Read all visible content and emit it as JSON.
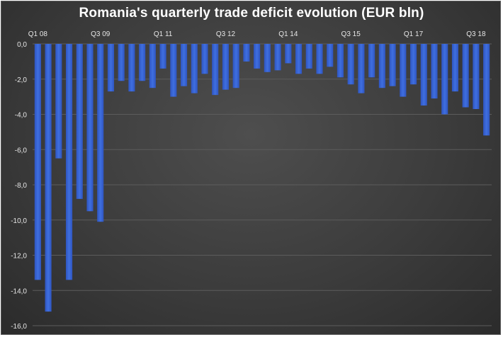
{
  "chart_data": {
    "type": "bar",
    "title": "Romania's quarterly trade deficit evolution (EUR bln)",
    "xlabel": "",
    "ylabel": "",
    "ylim": [
      -16,
      0
    ],
    "y_ticks": [
      "0,0",
      "-2,0",
      "-4,0",
      "-6,0",
      "-8,0",
      "-10,0",
      "-12,0",
      "-14,0",
      "-16,0"
    ],
    "y_tick_values": [
      0,
      -2,
      -4,
      -6,
      -8,
      -10,
      -12,
      -14,
      -16
    ],
    "categories": [
      "Q1 08",
      "Q2 08",
      "Q3 08",
      "Q4 08",
      "Q1 09",
      "Q2 09",
      "Q3 09",
      "Q4 09",
      "Q1 10",
      "Q2 10",
      "Q3 10",
      "Q4 10",
      "Q1 11",
      "Q2 11",
      "Q3 11",
      "Q4 11",
      "Q1 12",
      "Q2 12",
      "Q3 12",
      "Q4 12",
      "Q1 13",
      "Q2 13",
      "Q3 13",
      "Q4 13",
      "Q1 14",
      "Q2 14",
      "Q3 14",
      "Q4 14",
      "Q1 15",
      "Q2 15",
      "Q3 15",
      "Q4 15",
      "Q1 16",
      "Q2 16",
      "Q3 16",
      "Q4 16",
      "Q1 17",
      "Q2 17",
      "Q3 17",
      "Q4 17",
      "Q1 18",
      "Q2 18",
      "Q3 18",
      "Q4 18"
    ],
    "visible_x_labels": [
      "Q1 08",
      "Q3 09",
      "Q1 11",
      "Q3 12",
      "Q1 14",
      "Q3 15",
      "Q1 17",
      "Q3 18"
    ],
    "values": [
      -13.4,
      -15.2,
      -6.5,
      -13.4,
      -8.8,
      -9.5,
      -10.1,
      -2.7,
      -2.1,
      -2.7,
      -2.1,
      -2.5,
      -1.4,
      -3.0,
      -2.4,
      -2.8,
      -1.7,
      -2.9,
      -2.6,
      -2.5,
      -1.0,
      -1.4,
      -1.6,
      -1.5,
      -1.1,
      -1.7,
      -1.4,
      -1.7,
      -1.3,
      -1.9,
      -2.3,
      -2.8,
      -1.9,
      -2.5,
      -2.4,
      -3.0,
      -2.3,
      -3.5,
      -3.1,
      -4.0,
      -2.7,
      -3.6,
      -3.7,
      -5.2
    ],
    "grid": true,
    "legend": "none",
    "colors": {
      "bar": "#3f6fe0",
      "background": "#3f3f3f",
      "text": "#ffffff"
    }
  }
}
